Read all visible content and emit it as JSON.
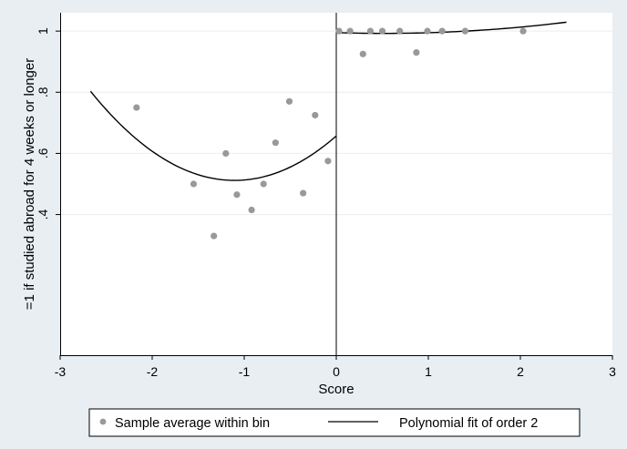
{
  "chart_data": {
    "type": "scatter",
    "xlabel": "Score",
    "ylabel": "=1 if studied abroad for 4 weeks or longer",
    "xlim": [
      -3,
      3
    ],
    "ylim": [
      -0.06,
      1.06
    ],
    "xticks": [
      -3,
      -2,
      -1,
      0,
      1,
      2,
      3
    ],
    "yticks": [
      0.4,
      0.6,
      0.8,
      1
    ],
    "ytick_labels": [
      ".4",
      ".6",
      ".8",
      "1"
    ],
    "grid": true,
    "cutoff_x": 0,
    "legend_position": "bottom",
    "colors": {
      "background": "#e8eef2",
      "plot_area": "#ffffff",
      "scatter": "#999999",
      "fit_line": "#000000",
      "grid": "#e9eef2"
    },
    "scatter_series": {
      "name": "Sample average within bin",
      "points": [
        [
          -2.17,
          0.75
        ],
        [
          -1.55,
          0.5
        ],
        [
          -1.33,
          0.33
        ],
        [
          -1.2,
          0.6
        ],
        [
          -1.08,
          0.465
        ],
        [
          -0.92,
          0.415
        ],
        [
          -0.79,
          0.5
        ],
        [
          -0.66,
          0.635
        ],
        [
          -0.51,
          0.77
        ],
        [
          -0.36,
          0.47
        ],
        [
          -0.23,
          0.725
        ],
        [
          -0.09,
          0.575
        ],
        [
          0.03,
          1.0
        ],
        [
          0.15,
          1.0
        ],
        [
          0.29,
          0.925
        ],
        [
          0.37,
          1.0
        ],
        [
          0.5,
          1.0
        ],
        [
          0.69,
          1.0
        ],
        [
          0.87,
          0.93
        ],
        [
          0.99,
          1.0
        ],
        [
          1.15,
          1.0
        ],
        [
          1.4,
          1.0
        ],
        [
          2.03,
          1.0
        ]
      ]
    },
    "fit_series": {
      "name": "Polynomial fit of order 2",
      "segments": [
        {
          "x_range": [
            -2.67,
            0
          ],
          "coef": [
            0.657,
            0.263,
            0.119
          ]
        },
        {
          "x_range": [
            0,
            2.5
          ],
          "coef": [
            0.995,
            -0.0096,
            0.0093
          ]
        }
      ]
    }
  }
}
